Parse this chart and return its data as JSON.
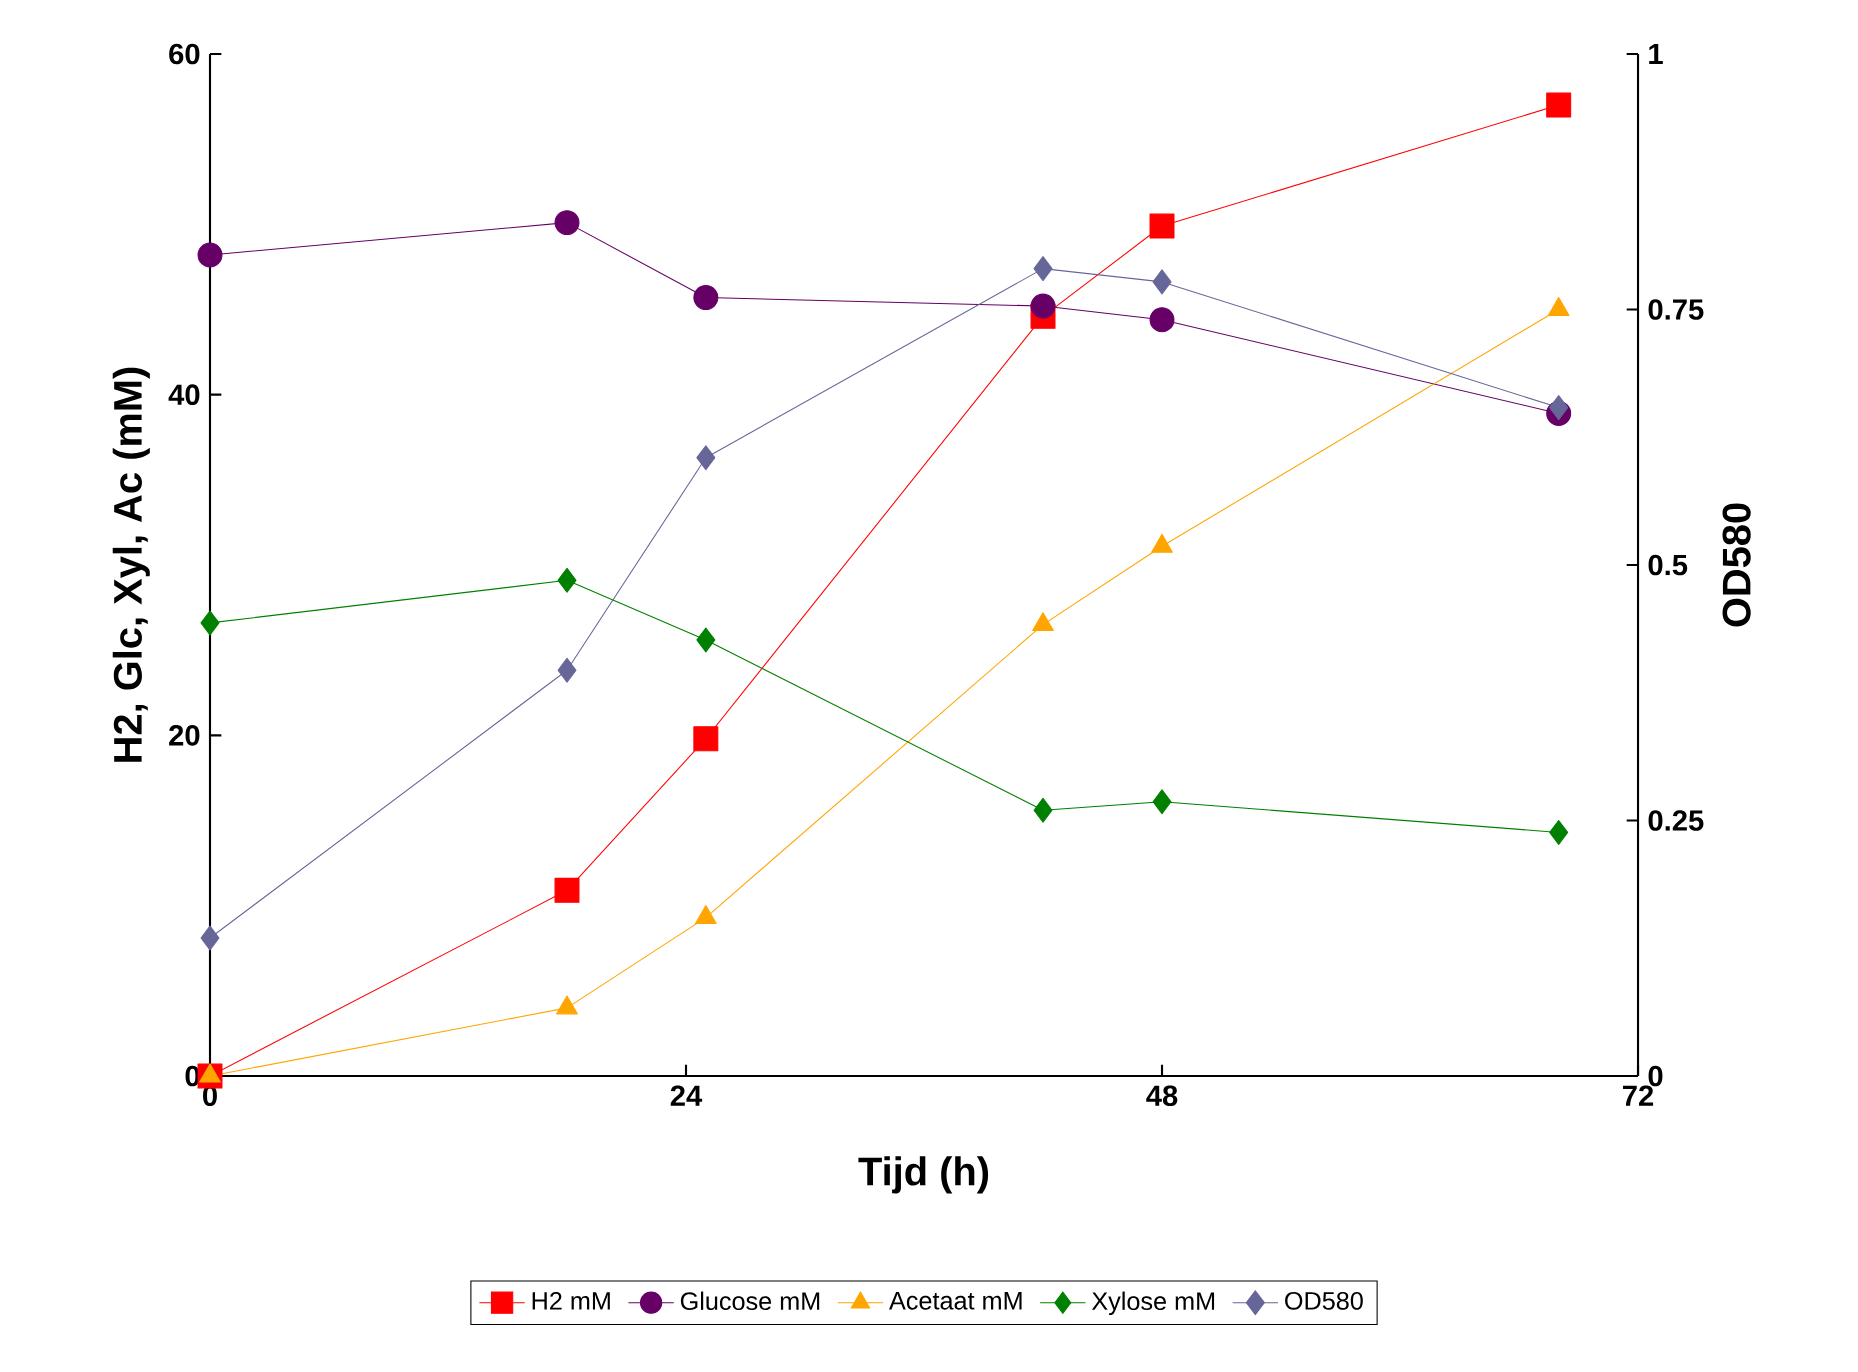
{
  "chart_data": {
    "type": "line",
    "xlabel": "Tijd (h)",
    "ylabel": "H2, Glc, Xyl, Ac (mM)",
    "y2label": "OD580",
    "x": [
      0,
      18,
      25,
      42,
      48,
      68
    ],
    "series": [
      {
        "name": "H2 mM",
        "color": "#ff0000",
        "marker": "square",
        "values": [
          0,
          10.9,
          19.8,
          44.6,
          49.9,
          57.0
        ]
      },
      {
        "name": "Glucose mM",
        "color": "#660066",
        "marker": "circle",
        "values": [
          48.2,
          50.1,
          45.7,
          45.2,
          44.4,
          38.9
        ]
      },
      {
        "name": "Acetaat mM",
        "color": "#ffa500",
        "marker": "triangle",
        "values": [
          0,
          4.0,
          9.3,
          26.5,
          31.1,
          45.0
        ]
      },
      {
        "name": "Xylose mM",
        "color": "#008000",
        "marker": "diamond",
        "values": [
          26.6,
          29.1,
          25.6,
          15.6,
          16.1,
          14.3
        ]
      },
      {
        "name": "OD580",
        "color": "#666699",
        "marker": "diamond",
        "axis": "y2",
        "values": [
          0.135,
          0.397,
          0.605,
          0.79,
          0.777,
          0.654
        ]
      }
    ],
    "xlim": [
      0,
      72
    ],
    "xticks": [
      0,
      24,
      48,
      72
    ],
    "ylim": [
      0,
      60
    ],
    "yticks": [
      0,
      20,
      40,
      60
    ],
    "y2lim": [
      0,
      1
    ],
    "y2ticks": [
      0,
      0.25,
      0.5,
      0.75,
      1
    ],
    "grid": false,
    "legend": "bottom",
    "line_style": "solid"
  }
}
